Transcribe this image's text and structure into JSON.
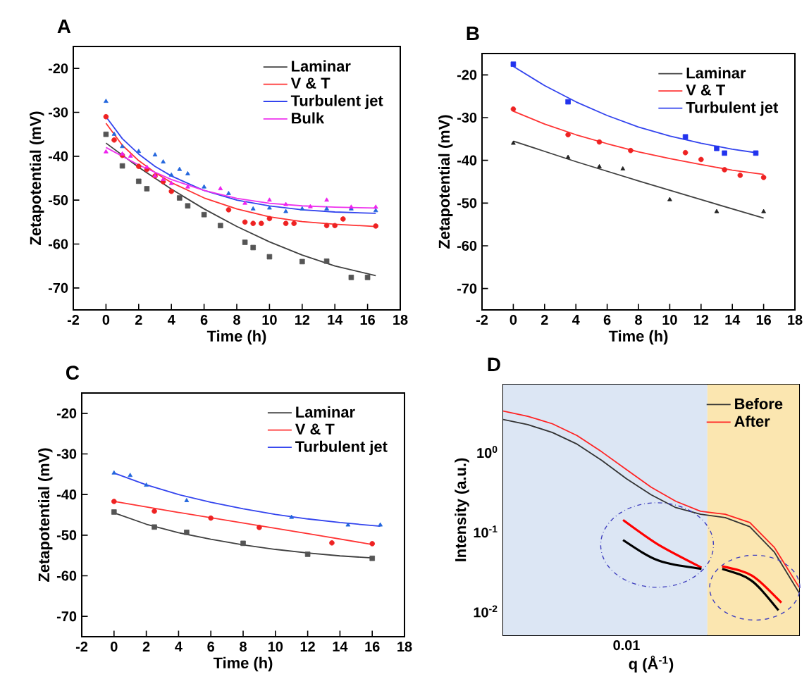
{
  "chart_data": [
    {
      "type": "scatter",
      "title": "A",
      "xlabel": "Time (h)",
      "ylabel": "Zetapotential (mV)",
      "xlim": [
        -2,
        18
      ],
      "xticks": [
        -2,
        0,
        2,
        4,
        6,
        8,
        10,
        12,
        14,
        16,
        18
      ],
      "ylim": [
        -75,
        -15
      ],
      "yticks": [
        -70,
        -60,
        -50,
        -40,
        -30,
        -20
      ],
      "legend": "top right",
      "series": [
        {
          "name": "Laminar",
          "type": "line",
          "color": "#404040",
          "marker": "none",
          "x": [
            0,
            2,
            4,
            6,
            8,
            10,
            12,
            14,
            16.5
          ],
          "values": [
            -37,
            -42.5,
            -47.5,
            -52,
            -56,
            -59.5,
            -62.5,
            -65,
            -67.2
          ]
        },
        {
          "name": "V & T",
          "type": "line",
          "color": "#ff3333",
          "marker": "none",
          "x": [
            0,
            1,
            2,
            3,
            4,
            6,
            8,
            10,
            12,
            14,
            16.5
          ],
          "values": [
            -32.5,
            -37.5,
            -41,
            -43.7,
            -46,
            -49.5,
            -52,
            -53.8,
            -54.9,
            -55.5,
            -56
          ]
        },
        {
          "name": "Turbulent jet",
          "type": "line",
          "color": "#3344ee",
          "marker": "none",
          "x": [
            0,
            1,
            2,
            3,
            4,
            6,
            8,
            10,
            12,
            14,
            16.5
          ],
          "values": [
            -31,
            -36,
            -39.5,
            -42.3,
            -44.5,
            -47.8,
            -50,
            -51.3,
            -52.2,
            -52.7,
            -53
          ]
        },
        {
          "name": "Bulk",
          "type": "line",
          "color": "#ee33ee",
          "marker": "none",
          "x": [
            0,
            2,
            4,
            6,
            8,
            10,
            12,
            14,
            16.5
          ],
          "values": [
            -38,
            -42,
            -45.3,
            -47.8,
            -49.6,
            -50.7,
            -51.3,
            -51.6,
            -51.8
          ]
        },
        {
          "type": "scatter",
          "color": "#555555",
          "marker": "square",
          "x": [
            0,
            1,
            2,
            2.5,
            4.5,
            5,
            6,
            7,
            8.5,
            9,
            10,
            12,
            13.5,
            15,
            16
          ],
          "values": [
            -35,
            -42.2,
            -45.7,
            -47.4,
            -49.5,
            -51.3,
            -53.3,
            -55.8,
            -59.6,
            -60.8,
            -62.9,
            -64,
            -63.9,
            -67.6,
            -67.6
          ]
        },
        {
          "type": "scatter",
          "color": "#ee2222",
          "marker": "circle",
          "x": [
            0,
            0.5,
            1,
            2,
            2.5,
            3,
            3.5,
            4,
            7.5,
            8.5,
            9,
            9.5,
            10,
            11,
            11.5,
            13.5,
            14,
            14.5,
            16.5
          ],
          "values": [
            -31,
            -36.3,
            -39.8,
            -42.3,
            -43,
            -44.5,
            -45.8,
            -48,
            -52.2,
            -55,
            -55.3,
            -55.3,
            -54.2,
            -55.3,
            -55.3,
            -55.8,
            -55.8,
            -54.3,
            -55.9
          ]
        },
        {
          "type": "scatter",
          "color": "#2266dd",
          "marker": "triangle",
          "x": [
            0,
            0.5,
            1,
            2,
            3,
            3.5,
            4,
            4.5,
            5,
            6,
            7.5,
            9,
            10,
            11,
            12,
            13.5,
            15,
            16.5
          ],
          "values": [
            -27.5,
            -35,
            -37.8,
            -38.9,
            -39.7,
            -41.3,
            -44.3,
            -43,
            -44,
            -47,
            -48.5,
            -52,
            -51.8,
            -52.6,
            -52,
            -52,
            -52,
            -52.4
          ]
        },
        {
          "type": "scatter",
          "color": "#ee22ee",
          "marker": "triangle",
          "x": [
            0,
            1,
            1.5,
            2.5,
            3,
            3.5,
            4,
            5,
            7,
            8.5,
            10,
            11,
            12.5,
            13.5,
            15,
            16.5
          ],
          "values": [
            -39,
            -39.5,
            -40,
            -42.5,
            -44.5,
            -45.3,
            -46.2,
            -47,
            -47.4,
            -50.7,
            -50,
            -51,
            -51.5,
            -50,
            -51.6,
            -51.6
          ]
        }
      ]
    },
    {
      "type": "scatter",
      "title": "B",
      "xlabel": "Time (h)",
      "ylabel": "Zetapotential (mV)",
      "xlim": [
        -2,
        18
      ],
      "xticks": [
        -2,
        0,
        2,
        4,
        6,
        8,
        10,
        12,
        14,
        16,
        18
      ],
      "ylim": [
        -75,
        -15
      ],
      "yticks": [
        -70,
        -60,
        -50,
        -40,
        -30,
        -20
      ],
      "legend": "top right",
      "series": [
        {
          "name": "Laminar",
          "type": "line",
          "color": "#404040",
          "marker": "none",
          "x": [
            0,
            4,
            8,
            12,
            16
          ],
          "values": [
            -35.5,
            -40.3,
            -44.8,
            -49.2,
            -53.5
          ]
        },
        {
          "name": "V & T",
          "type": "line",
          "color": "#ff3333",
          "marker": "none",
          "x": [
            0,
            2,
            4,
            6,
            8,
            10,
            12,
            14,
            16
          ],
          "values": [
            -28.5,
            -31.5,
            -34,
            -36.1,
            -38,
            -39.6,
            -41,
            -42.3,
            -43.3
          ]
        },
        {
          "name": "Turbulent jet",
          "type": "line",
          "color": "#3344ee",
          "marker": "none",
          "x": [
            0,
            2,
            4,
            6,
            8,
            10,
            12,
            14,
            15.5
          ],
          "values": [
            -18,
            -22.5,
            -26.3,
            -29.5,
            -32.2,
            -34.3,
            -36,
            -37.4,
            -38.2
          ]
        },
        {
          "type": "scatter",
          "color": "#222222",
          "marker": "triangle",
          "x": [
            0,
            3.5,
            5.5,
            7,
            10,
            13,
            16
          ],
          "values": [
            -36,
            -39.3,
            -41.5,
            -42,
            -49.2,
            -52,
            -52
          ]
        },
        {
          "type": "scatter",
          "color": "#ee2222",
          "marker": "circle",
          "x": [
            0,
            3.5,
            5.5,
            7.5,
            11,
            12,
            13.5,
            14.5,
            16
          ],
          "values": [
            -28,
            -34,
            -35.7,
            -37.7,
            -38.2,
            -39.8,
            -42.2,
            -43.5,
            -44
          ]
        },
        {
          "type": "scatter",
          "color": "#2233ee",
          "marker": "square",
          "x": [
            0,
            3.5,
            11,
            13,
            13.5,
            15.5
          ],
          "values": [
            -17.5,
            -26.3,
            -34.5,
            -37.2,
            -38.3,
            -38.3
          ]
        }
      ]
    },
    {
      "type": "scatter",
      "title": "C",
      "xlabel": "Time (h)",
      "ylabel": "Zetapotential (mV)",
      "xlim": [
        -2,
        18
      ],
      "xticks": [
        -2,
        0,
        2,
        4,
        6,
        8,
        10,
        12,
        14,
        16,
        18
      ],
      "ylim": [
        -75,
        -15
      ],
      "yticks": [
        -70,
        -60,
        -50,
        -40,
        -30,
        -20
      ],
      "legend": "top right",
      "series": [
        {
          "name": "Laminar",
          "type": "line",
          "color": "#404040",
          "marker": "none",
          "x": [
            0,
            2,
            4,
            6,
            8,
            10,
            12,
            14,
            16
          ],
          "values": [
            -44.5,
            -47.3,
            -49.4,
            -51,
            -52.4,
            -53.5,
            -54.4,
            -55.1,
            -55.6
          ]
        },
        {
          "name": "V & T",
          "type": "line",
          "color": "#ff3333",
          "marker": "none",
          "x": [
            0,
            4,
            8,
            12,
            16
          ],
          "values": [
            -41.7,
            -44.4,
            -47,
            -49.6,
            -52.3
          ]
        },
        {
          "name": "Turbulent jet",
          "type": "line",
          "color": "#3344ee",
          "marker": "none",
          "x": [
            0,
            2,
            4,
            6,
            8,
            10,
            12,
            14,
            16.5
          ],
          "values": [
            -34.7,
            -37.6,
            -40,
            -41.9,
            -43.5,
            -44.9,
            -46,
            -46.9,
            -47.8
          ]
        },
        {
          "type": "scatter",
          "color": "#555555",
          "marker": "square",
          "x": [
            0,
            2.5,
            4.5,
            8,
            12,
            16
          ],
          "values": [
            -44.3,
            -48,
            -49.3,
            -52,
            -54.7,
            -55.7
          ]
        },
        {
          "type": "scatter",
          "color": "#ee2222",
          "marker": "circle",
          "x": [
            0,
            2.5,
            6,
            9,
            13.5,
            16
          ],
          "values": [
            -41.7,
            -44.1,
            -45.8,
            -48.1,
            -51.9,
            -52.1
          ]
        },
        {
          "type": "scatter",
          "color": "#2266dd",
          "marker": "triangle",
          "x": [
            0,
            1,
            2,
            4.5,
            11,
            14.5,
            16.5
          ],
          "values": [
            -34.7,
            -35.3,
            -37.7,
            -41.5,
            -45.6,
            -47.5,
            -47.5
          ]
        }
      ]
    },
    {
      "type": "line",
      "title": "D",
      "xlabel": "q (Å$^{-1}$)",
      "ylabel": "Intensity (a.u.)",
      "log": "y",
      "categories": [
        null,
        null,
        null,
        null,
        null,
        "0.01",
        null,
        null,
        null,
        null,
        null,
        null,
        null
      ],
      "ylim": [
        0.005,
        7
      ],
      "yticks": [
        {
          "value": 0.01,
          "label": "10$^{-2}$"
        },
        {
          "value": 0.1,
          "label": "10$^{-1}$"
        },
        {
          "value": 1,
          "label": "10$^{0}$"
        }
      ],
      "legend": "top right",
      "series": [
        {
          "name": "Before",
          "color": "#333333",
          "values": [
            2.55,
            2.2,
            1.75,
            1.25,
            0.78,
            0.46,
            0.29,
            0.2,
            0.165,
            0.15,
            0.115,
            0.055,
            0.017
          ]
        },
        {
          "name": "After",
          "color": "#ff2222",
          "values": [
            3.25,
            2.8,
            2.25,
            1.6,
            1.0,
            0.6,
            0.36,
            0.24,
            0.18,
            0.165,
            0.13,
            0.063,
            0.02
          ]
        }
      ]
    }
  ]
}
